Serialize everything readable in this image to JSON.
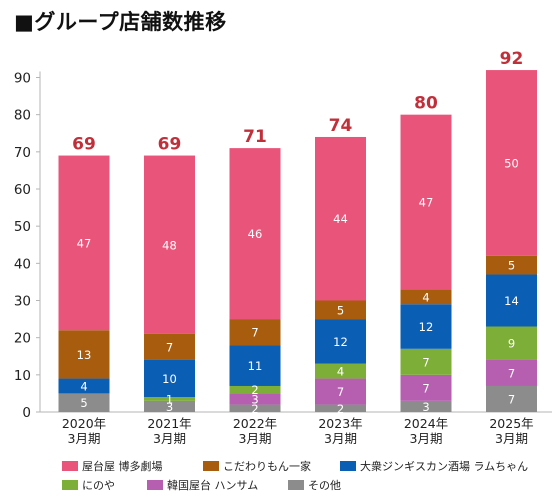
{
  "title": "■グループ店舗数推移",
  "chart_data": {
    "type": "bar",
    "stacked": true,
    "categories": [
      "2020年\n3月期",
      "2021年\n3月期",
      "2022年\n3月期",
      "2023年\n3月期",
      "2024年\n3月期",
      "2025年\n3月期"
    ],
    "series": [
      {
        "name": "その他",
        "color": "#8c8c8c",
        "values": [
          5,
          3,
          2,
          2,
          3,
          7
        ]
      },
      {
        "name": "韓国屋台 ハンサム",
        "color": "#b65fb0",
        "values": [
          0,
          0,
          3,
          7,
          7,
          7
        ]
      },
      {
        "name": "にのや",
        "color": "#7dae37",
        "values": [
          0,
          1,
          2,
          4,
          7,
          9
        ]
      },
      {
        "name": "大衆ジンギスカン酒場 ラムちゃん",
        "color": "#0a5eb4",
        "values": [
          4,
          10,
          11,
          12,
          12,
          14
        ]
      },
      {
        "name": "こだわりもん一家",
        "color": "#a85c0e",
        "values": [
          13,
          7,
          7,
          5,
          4,
          5
        ]
      },
      {
        "name": "屋台屋 博多劇場",
        "color": "#e9557a",
        "values": [
          47,
          48,
          46,
          44,
          47,
          50
        ]
      }
    ],
    "totals": [
      69,
      69,
      71,
      74,
      80,
      92
    ],
    "ylim": [
      0,
      90
    ],
    "yticks": [
      0,
      10,
      20,
      30,
      40,
      50,
      60,
      70,
      80,
      90
    ],
    "grid": false,
    "legend_position": "bottom",
    "legend_order": [
      "屋台屋 博多劇場",
      "こだわりもん一家",
      "大衆ジンギスカン酒場 ラムちゃん",
      "にのや",
      "韓国屋台 ハンサム",
      "その他"
    ],
    "total_color": "#c0303b"
  }
}
